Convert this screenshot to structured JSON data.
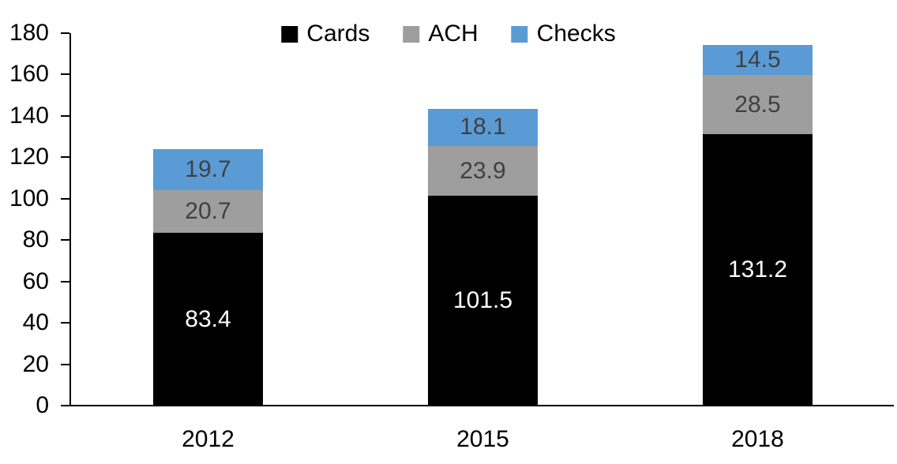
{
  "chart_data": {
    "type": "bar",
    "stacked": true,
    "title": "",
    "xlabel": "",
    "ylabel": "",
    "categories": [
      "2012",
      "2015",
      "2018"
    ],
    "series": [
      {
        "name": "Cards",
        "color": "#000000",
        "label_color": "#ffffff",
        "values": [
          83.4,
          101.5,
          131.2
        ]
      },
      {
        "name": "ACH",
        "color": "#9e9e9e",
        "label_color": "#404040",
        "values": [
          20.7,
          23.9,
          28.5
        ]
      },
      {
        "name": "Checks",
        "color": "#5b9bd5",
        "label_color": "#404040",
        "values": [
          19.7,
          18.1,
          14.5
        ]
      }
    ],
    "totals": [
      123.8,
      143.5,
      174.2
    ],
    "ylim": [
      0,
      180
    ],
    "ytick_step": 20,
    "yticks": [
      "0",
      "20",
      "40",
      "60",
      "80",
      "100",
      "120",
      "140",
      "160",
      "180"
    ],
    "legend_position": "top-center",
    "legend_labels": [
      "Cards",
      "ACH",
      "Checks"
    ],
    "grid": false,
    "axis_color": "#000000",
    "text_color": "#000000",
    "background_color": "#ffffff"
  }
}
